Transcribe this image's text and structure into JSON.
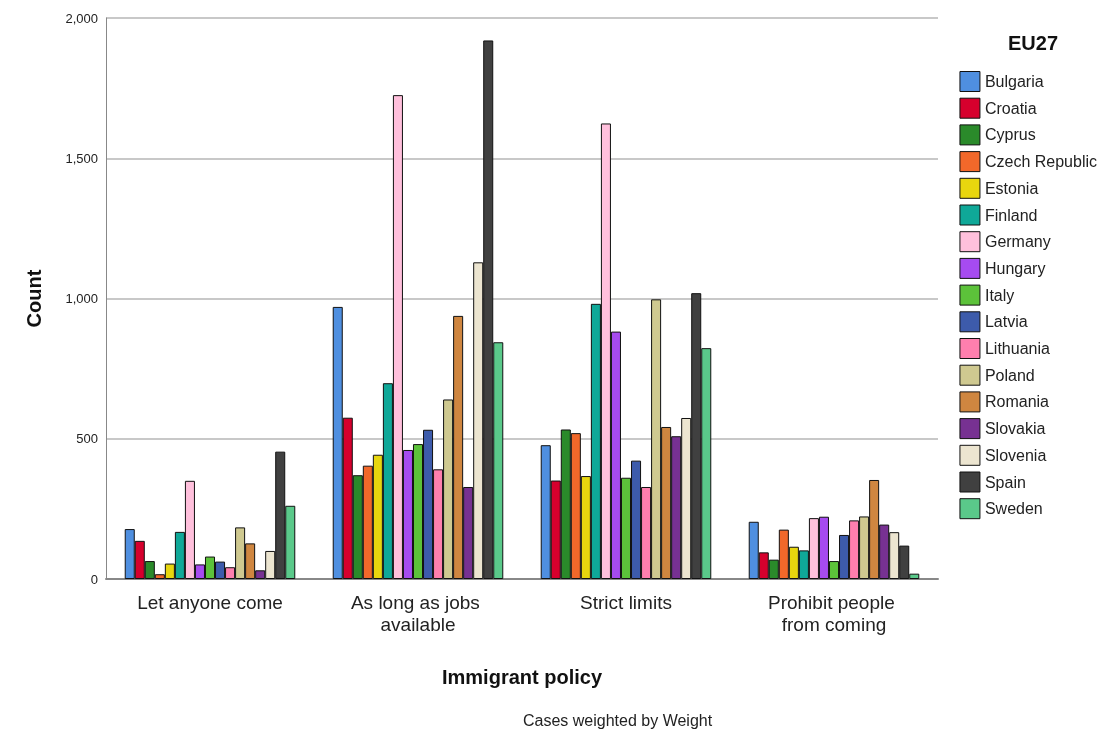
{
  "chart_data": {
    "type": "bar",
    "xlabel": "Immigrant policy",
    "ylabel": "Count",
    "legend_title": "EU27",
    "annotations": [
      "Cases weighted by Weight"
    ],
    "categories": [
      "Let anyone come",
      "As long as jobs available",
      "Strict limits",
      "Prohibit people from coming"
    ],
    "ylim": [
      0,
      2000
    ],
    "yticks": [
      {
        "value": 0,
        "label": "0"
      },
      {
        "value": 500,
        "label": "500"
      },
      {
        "value": 1000,
        "label": "1,000"
      },
      {
        "value": 1500,
        "label": "1,500"
      },
      {
        "value": 2000,
        "label": "2,000"
      }
    ],
    "grid": "y",
    "legend": "right",
    "series": [
      {
        "name": "Bulgaria",
        "color": "#4f8fe0",
        "values": [
          178,
          970,
          477,
          204
        ]
      },
      {
        "name": "Croatia",
        "color": "#d6002d",
        "values": [
          136,
          575,
          351,
          95
        ]
      },
      {
        "name": "Cyprus",
        "color": "#2a8a2a",
        "values": [
          64,
          370,
          533,
          69
        ]
      },
      {
        "name": "Czech Republic",
        "color": "#f2682a",
        "values": [
          17,
          404,
          520,
          176
        ]
      },
      {
        "name": "Estonia",
        "color": "#e8d60e",
        "values": [
          55,
          443,
          367,
          115
        ]
      },
      {
        "name": "Finland",
        "color": "#0fa898",
        "values": [
          168,
          698,
          981,
          102
        ]
      },
      {
        "name": "Germany",
        "color": "#ffc0dc",
        "values": [
          350,
          1725,
          1624,
          217
        ]
      },
      {
        "name": "Hungary",
        "color": "#a64bf0",
        "values": [
          52,
          460,
          882,
          222
        ]
      },
      {
        "name": "Italy",
        "color": "#5cc23a",
        "values": [
          80,
          481,
          361,
          64
        ]
      },
      {
        "name": "Latvia",
        "color": "#3d5bab",
        "values": [
          62,
          532,
          422,
          157
        ]
      },
      {
        "name": "Lithuania",
        "color": "#ff7fae",
        "values": [
          42,
          391,
          328,
          209
        ]
      },
      {
        "name": "Poland",
        "color": "#cfc990",
        "values": [
          184,
          640,
          997,
          223
        ]
      },
      {
        "name": "Romania",
        "color": "#cf8640",
        "values": [
          127,
          938,
          542,
          353
        ]
      },
      {
        "name": "Slovakia",
        "color": "#773192",
        "values": [
          31,
          328,
          509,
          194
        ]
      },
      {
        "name": "Slovenia",
        "color": "#ece5d0",
        "values": [
          100,
          1129,
          574,
          167
        ]
      },
      {
        "name": "Spain",
        "color": "#404040",
        "values": [
          454,
          1920,
          1019,
          119
        ]
      },
      {
        "name": "Sweden",
        "color": "#5ac98a",
        "values": [
          261,
          844,
          823,
          19
        ]
      }
    ]
  }
}
